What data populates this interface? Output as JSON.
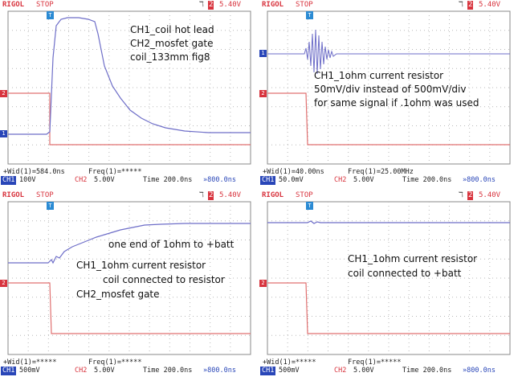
{
  "header": {
    "brand": "RIGOL",
    "state": "STOP",
    "trig_symbol": "ℸ",
    "trig_channel": "2",
    "trig_level": "5.40V"
  },
  "panels": [
    {
      "labels": [
        "CH1_coil hot lead",
        "CH2_mosfet gate",
        "coil_133mm fig8"
      ],
      "meas1": "+Wid(1)=584.0ns",
      "meas2": "Freq(1)=*****",
      "ch1_scale": "100V",
      "ch2_scale": "5.00V",
      "time": "Time 200.0ns",
      "offset": "»800.0ns"
    },
    {
      "labels": [
        "CH1_1ohm current resistor",
        "50mV/div instead of 500mV/div",
        "for same signal if .1ohm was used"
      ],
      "meas1": "+Wid(1)=40.00ns",
      "meas2": "Freq(1)=25.00MHz",
      "ch1_scale": "50.0mV",
      "ch2_scale": "5.00V",
      "time": "Time 200.0ns",
      "offset": "»800.0ns"
    },
    {
      "labels": [
        "one end of 1ohm to +batt",
        "CH1_1ohm current resistor",
        "coil connected to resistor",
        "CH2_mosfet gate"
      ],
      "meas1": "+Wid(1)=*****",
      "meas2": "Freq(1)=*****",
      "ch1_scale": "500mV",
      "ch2_scale": "5.00V",
      "time": "Time 200.0ns",
      "offset": "»800.0ns"
    },
    {
      "labels": [
        "CH1_1ohm current resistor",
        "coil connected to +batt"
      ],
      "meas1": "+Wid(1)=*****",
      "meas2": "Freq(1)=*****",
      "ch1_scale": "500mV",
      "ch2_scale": "5.00V",
      "time": "Time 200.0ns",
      "offset": "»800.0ns"
    }
  ],
  "ch1_label": "CH1",
  "ch2_label": "CH2",
  "colors": {
    "ch1": "#6e6ec8",
    "ch2": "#e07070",
    "brand": "#d8343e",
    "grid": "#b8b8b8"
  }
}
